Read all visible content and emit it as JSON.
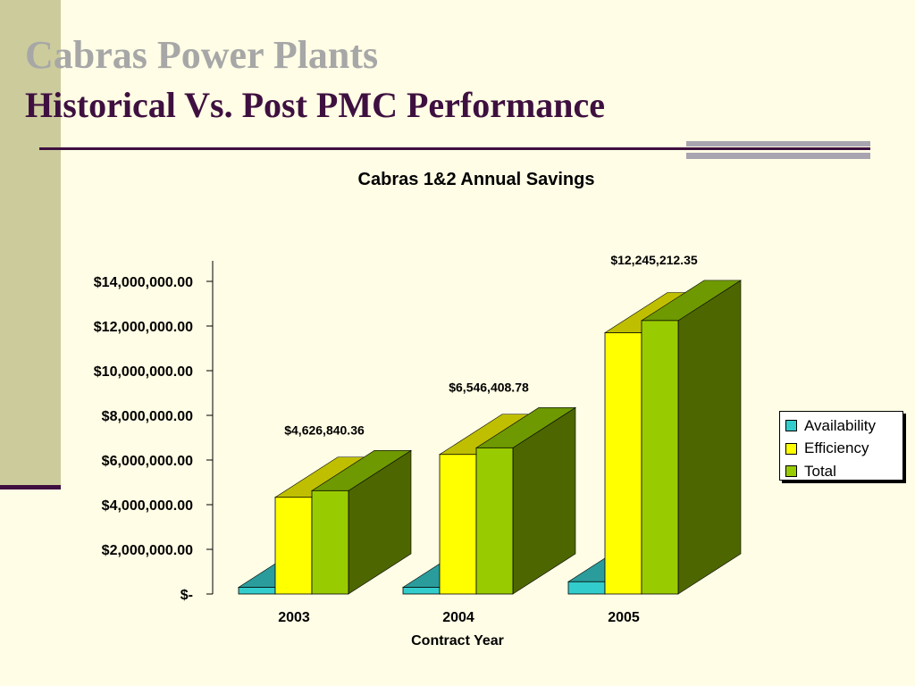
{
  "slide": {
    "title": "Cabras Power Plants",
    "subtitle": "Historical Vs. Post PMC Performance"
  },
  "colors": {
    "background": "#FFFDE5",
    "stripe": "#CCCB9C",
    "title_gray": "#A7A7A7",
    "title_purple": "#3E1040"
  },
  "chart_data": {
    "type": "bar",
    "three_d": true,
    "title": "Cabras 1&2 Annual Savings",
    "xlabel": "Contract Year",
    "ylabel": "",
    "categories": [
      "2003",
      "2004",
      "2005"
    ],
    "ylim": [
      0,
      14000000
    ],
    "ytick_values": [
      0,
      2000000,
      4000000,
      6000000,
      8000000,
      10000000,
      12000000,
      14000000
    ],
    "ytick_labels": [
      "$-",
      "$2,000,000.00",
      "$4,000,000.00",
      "$6,000,000.00",
      "$8,000,000.00",
      "$10,000,000.00",
      "$12,000,000.00",
      "$14,000,000.00"
    ],
    "series": [
      {
        "name": "Availability",
        "values": [
          300000,
          300000,
          550000
        ],
        "colors": {
          "front": "#33CCCC",
          "top": "#2B9C9C",
          "side": "#1D7373"
        }
      },
      {
        "name": "Efficiency",
        "values": [
          4330000,
          6250000,
          11700000
        ],
        "colors": {
          "front": "#FFFF00",
          "top": "#BFBF00",
          "side": "#8C8C00"
        }
      },
      {
        "name": "Total",
        "values": [
          4626840.36,
          6546408.78,
          12245212.35
        ],
        "colors": {
          "front": "#99CC00",
          "top": "#6E9900",
          "side": "#4D6600"
        }
      }
    ],
    "data_labels": [
      "$4,626,840.36",
      "$6,546,408.78",
      "$12,245,212.35"
    ],
    "legend": {
      "position": "right",
      "entries": [
        "Availability",
        "Efficiency",
        "Total"
      ]
    },
    "grid": false
  }
}
